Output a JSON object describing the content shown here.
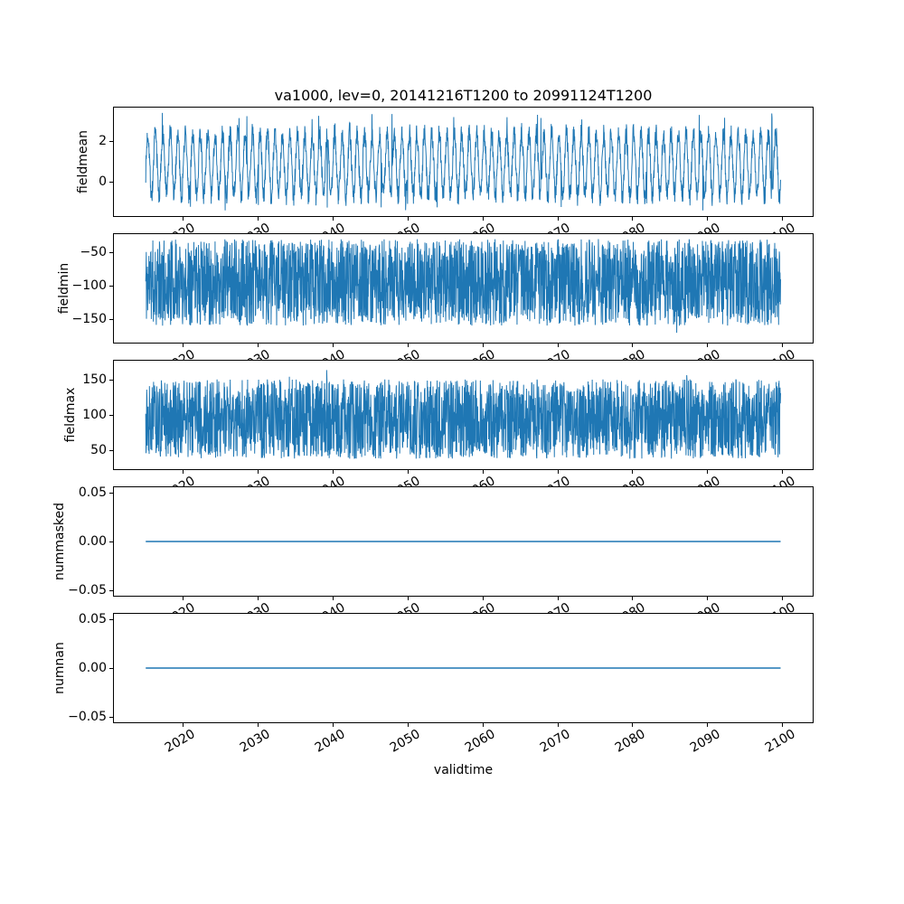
{
  "title": "va1000, lev=0, 20141216T1200 to 20991124T1200",
  "xlabel": "validtime",
  "line_color": "#1f77b4",
  "axis_color": "#000000",
  "chart_data": {
    "type": "line",
    "title": "va1000, lev=0, 20141216T1200 to 20991124T1200",
    "xlabel": "validtime",
    "x": {
      "lim": [
        2010.7,
        2104.2
      ],
      "data_range": [
        2014.96,
        2099.9
      ],
      "ticks": [
        {
          "v": 2020,
          "label": "2020"
        },
        {
          "v": 2030,
          "label": "2030"
        },
        {
          "v": 2040,
          "label": "2040"
        },
        {
          "v": 2050,
          "label": "2050"
        },
        {
          "v": 2060,
          "label": "2060"
        },
        {
          "v": 2070,
          "label": "2070"
        },
        {
          "v": 2080,
          "label": "2080"
        },
        {
          "v": 2090,
          "label": "2090"
        },
        {
          "v": 2100,
          "label": "2100"
        }
      ]
    },
    "subplots": [
      {
        "name": "fieldmean",
        "ylabel": "fieldmean",
        "ylim": [
          -1.75,
          3.7
        ],
        "yticks": [
          {
            "v": 2,
            "label": "2"
          },
          {
            "v": 0,
            "label": "0"
          }
        ],
        "summary": "dense noisy annual-cycle signal, mean ~0.9, band ~ -1.3 to 3.0, rare spikes to ~3.5",
        "signal": {
          "kind": "seasonal",
          "mid": 0.85,
          "amp": 1.55,
          "noise": 1.1,
          "spike_hi": 3.5,
          "spike_lo": -1.5,
          "spike_prob": 0.004,
          "n": 2600,
          "seed": 7
        }
      },
      {
        "name": "fieldmin",
        "ylabel": "fieldmin",
        "ylim": [
          -185.4,
          -22.6
        ],
        "yticks": [
          {
            "v": -50,
            "label": "−50"
          },
          {
            "v": -100,
            "label": "−100"
          },
          {
            "v": -150,
            "label": "−150"
          }
        ],
        "summary": "dense noise band ~ -160 to -30 with downward spikes to ~ -178",
        "signal": {
          "kind": "uniform",
          "lo": -160,
          "hi": -30,
          "spike_prob": 0.008,
          "spike_add": -18,
          "n": 2600,
          "seed": 11
        }
      },
      {
        "name": "fieldmax",
        "ylabel": "fieldmax",
        "ylim": [
          20.8,
          179.2
        ],
        "yticks": [
          {
            "v": 150,
            "label": "150"
          },
          {
            "v": 100,
            "label": "100"
          },
          {
            "v": 50,
            "label": "50"
          }
        ],
        "summary": "dense noise band ~ 36 to 152 with upward spikes to ~ 172",
        "signal": {
          "kind": "uniform",
          "lo": 36,
          "hi": 152,
          "spike_prob": 0.01,
          "spike_add": 20,
          "n": 2600,
          "seed": 13
        }
      },
      {
        "name": "nummasked",
        "ylabel": "nummasked",
        "ylim": [
          -0.0565,
          0.0565
        ],
        "yticks": [
          {
            "v": 0.05,
            "label": "0.05"
          },
          {
            "v": 0.0,
            "label": "0.00"
          },
          {
            "v": -0.05,
            "label": "−0.05"
          }
        ],
        "summary": "constant zero line",
        "signal": {
          "kind": "const",
          "value": 0
        }
      },
      {
        "name": "numnan",
        "ylabel": "numnan",
        "ylim": [
          -0.0565,
          0.0565
        ],
        "yticks": [
          {
            "v": 0.05,
            "label": "0.05"
          },
          {
            "v": 0.0,
            "label": "0.00"
          },
          {
            "v": -0.05,
            "label": "−0.05"
          }
        ],
        "summary": "constant zero line",
        "signal": {
          "kind": "const",
          "value": 0
        }
      }
    ]
  }
}
